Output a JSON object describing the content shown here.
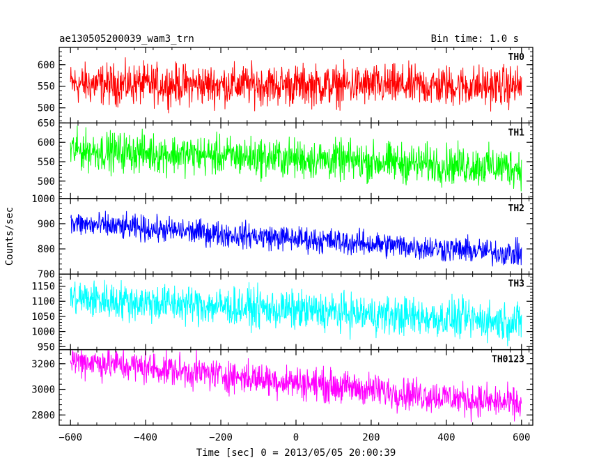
{
  "header": {
    "title": "ae130505200039_wam3_trn",
    "bin_time": "Bin time: 1.0 s"
  },
  "chart_data": {
    "type": "line",
    "xlabel": "Time [sec] 0 = 2013/05/05 20:00:39",
    "ylabel": "Counts/sec",
    "xlim": [
      -630,
      630
    ],
    "x_range": [
      -600,
      600
    ],
    "bin_time_s": 1.0,
    "x_ticks": [
      -600,
      -400,
      -200,
      0,
      200,
      400,
      600
    ],
    "x_tick_labels": [
      "−600",
      "−400",
      "−200",
      "0",
      "200",
      "400",
      "600"
    ],
    "panels": [
      {
        "name": "TH0",
        "color": "#ff0000",
        "ylim": [
          465,
          640
        ],
        "y_ticks": [
          500,
          550,
          600
        ],
        "y_tick_labels": [
          "500",
          "550",
          "600"
        ],
        "trend_start": 555,
        "trend_end": 550,
        "spread": 70
      },
      {
        "name": "TH1",
        "color": "#00ff00",
        "ylim": [
          455,
          650
        ],
        "y_ticks": [
          500,
          550,
          600,
          650
        ],
        "y_tick_labels": [
          "500",
          "550",
          "600",
          "650"
        ],
        "trend_start": 580,
        "trend_end": 535,
        "spread": 75
      },
      {
        "name": "TH2",
        "color": "#0000ff",
        "ylim": [
          700,
          1000
        ],
        "y_ticks": [
          700,
          800,
          900,
          1000
        ],
        "y_tick_labels": [
          "700",
          "800",
          "900",
          "1000"
        ],
        "trend_start": 900,
        "trend_end": 780,
        "spread": 75
      },
      {
        "name": "TH3",
        "color": "#00ffff",
        "ylim": [
          940,
          1190
        ],
        "y_ticks": [
          950,
          1000,
          1050,
          1100,
          1150
        ],
        "y_tick_labels": [
          "950",
          "1000",
          "1050",
          "1100",
          "1150"
        ],
        "trend_start": 1110,
        "trend_end": 1030,
        "spread": 95
      },
      {
        "name": "TH0123",
        "color": "#ff00ff",
        "ylim": [
          2720,
          3310
        ],
        "y_ticks": [
          2800,
          3000,
          3200
        ],
        "y_tick_labels": [
          "2800",
          "3000",
          "3200"
        ],
        "trend_start": 3230,
        "trend_end": 2880,
        "spread": 190
      }
    ]
  }
}
